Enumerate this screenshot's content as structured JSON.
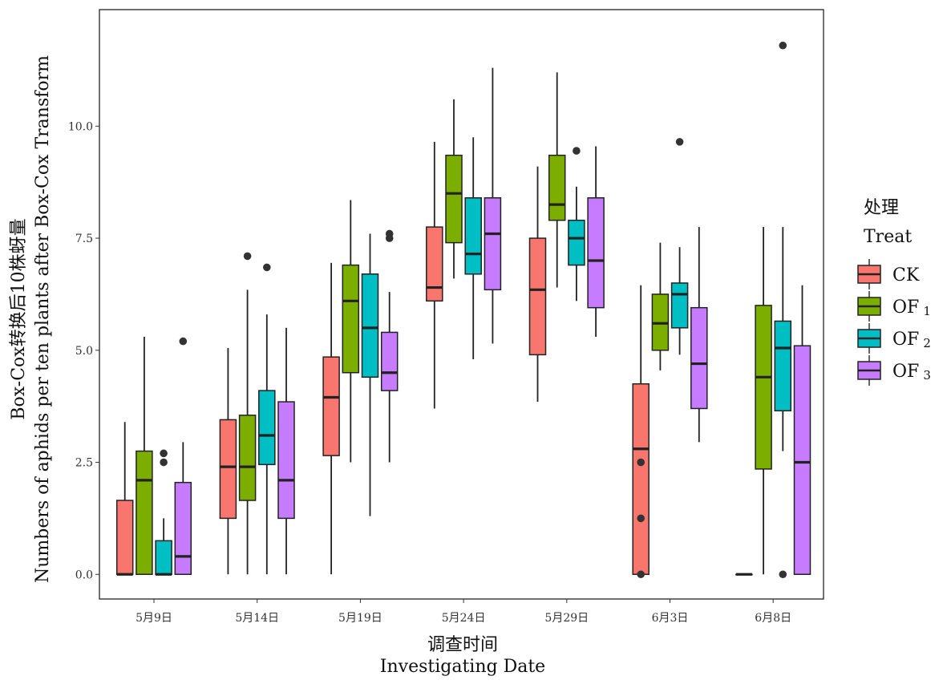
{
  "chart_data": {
    "type": "box",
    "xlabel_cn": "调查时间",
    "xlabel_en": "Investigating Date",
    "ylabel_cn": "Box-Cox转换后10株蚜量",
    "ylabel_en": "Numbers of aphids per ten plants after Box-Cox Transform",
    "yticks": [
      "0.0",
      "2.5",
      "5.0",
      "7.5",
      "10.0"
    ],
    "ylim": [
      -0.55,
      12.6
    ],
    "categories": [
      "5月9日",
      "5月14日",
      "5月19日",
      "5月24日",
      "5月29日",
      "6月3日",
      "6月8日"
    ],
    "legend": {
      "title_cn": "处理",
      "title_en": "Treat",
      "position": "right",
      "entries": [
        {
          "name": "CK",
          "sub": "",
          "color": "#F8766D"
        },
        {
          "name": "OF",
          "sub": "1",
          "color": "#7CAE00"
        },
        {
          "name": "OF",
          "sub": "2",
          "color": "#00BFC4"
        },
        {
          "name": "OF",
          "sub": "3",
          "color": "#C77CFF"
        }
      ]
    },
    "series": [
      {
        "name": "CK",
        "boxes": [
          {
            "min": 0.0,
            "q1": 0.0,
            "median": 0.0,
            "q3": 1.65,
            "max": 3.4,
            "outliers": []
          },
          {
            "min": 0.0,
            "q1": 1.25,
            "median": 2.4,
            "q3": 3.45,
            "max": 5.05,
            "outliers": []
          },
          {
            "min": 0.0,
            "q1": 2.65,
            "median": 3.95,
            "q3": 4.85,
            "max": 6.95,
            "outliers": []
          },
          {
            "min": 3.7,
            "q1": 6.1,
            "median": 6.4,
            "q3": 7.75,
            "max": 9.65,
            "outliers": []
          },
          {
            "min": 3.85,
            "q1": 4.9,
            "median": 6.35,
            "q3": 7.5,
            "max": 9.1,
            "outliers": []
          },
          {
            "min": 0.0,
            "q1": 0.0,
            "median": 2.8,
            "q3": 4.25,
            "max": 6.45,
            "outliers": [
              2.5,
              1.25,
              0.0
            ]
          },
          {
            "min": 0.0,
            "q1": 0.0,
            "median": 0.0,
            "q3": 0.0,
            "max": 0.0,
            "outliers": []
          }
        ]
      },
      {
        "name": "OF1",
        "boxes": [
          {
            "min": 0.0,
            "q1": 0.0,
            "median": 2.1,
            "q3": 2.75,
            "max": 5.3,
            "outliers": []
          },
          {
            "min": 0.0,
            "q1": 1.65,
            "median": 2.4,
            "q3": 3.55,
            "max": 6.35,
            "outliers": [
              7.1
            ]
          },
          {
            "min": 2.5,
            "q1": 4.5,
            "median": 6.1,
            "q3": 6.9,
            "max": 8.35,
            "outliers": []
          },
          {
            "min": 6.6,
            "q1": 7.4,
            "median": 8.5,
            "q3": 9.35,
            "max": 10.6,
            "outliers": []
          },
          {
            "min": 6.4,
            "q1": 7.9,
            "median": 8.25,
            "q3": 9.35,
            "max": 11.2,
            "outliers": []
          },
          {
            "min": 4.55,
            "q1": 5.0,
            "median": 5.6,
            "q3": 6.25,
            "max": 7.4,
            "outliers": []
          },
          {
            "min": 0.0,
            "q1": 2.35,
            "median": 4.4,
            "q3": 6.0,
            "max": 7.75,
            "outliers": []
          }
        ]
      },
      {
        "name": "OF2",
        "boxes": [
          {
            "min": 0.0,
            "q1": 0.0,
            "median": 0.0,
            "q3": 0.75,
            "max": 1.25,
            "outliers": [
              2.7,
              2.5
            ]
          },
          {
            "min": 0.0,
            "q1": 2.45,
            "median": 3.1,
            "q3": 4.1,
            "max": 5.8,
            "outliers": [
              6.85
            ]
          },
          {
            "min": 1.3,
            "q1": 4.4,
            "median": 5.5,
            "q3": 6.7,
            "max": 7.6,
            "outliers": []
          },
          {
            "min": 4.8,
            "q1": 6.7,
            "median": 7.15,
            "q3": 8.4,
            "max": 9.75,
            "outliers": []
          },
          {
            "min": 6.1,
            "q1": 6.9,
            "median": 7.5,
            "q3": 7.9,
            "max": 8.65,
            "outliers": [
              9.45
            ]
          },
          {
            "min": 4.9,
            "q1": 5.5,
            "median": 6.25,
            "q3": 6.5,
            "max": 7.3,
            "outliers": [
              9.65
            ]
          },
          {
            "min": 2.75,
            "q1": 3.65,
            "median": 5.05,
            "q3": 5.65,
            "max": 7.75,
            "outliers": [
              0.0,
              11.8
            ]
          }
        ]
      },
      {
        "name": "OF3",
        "boxes": [
          {
            "min": 0.0,
            "q1": 0.0,
            "median": 0.4,
            "q3": 2.05,
            "max": 2.95,
            "outliers": [
              5.2
            ]
          },
          {
            "min": 0.0,
            "q1": 1.25,
            "median": 2.1,
            "q3": 3.85,
            "max": 5.5,
            "outliers": []
          },
          {
            "min": 2.5,
            "q1": 4.1,
            "median": 4.5,
            "q3": 5.4,
            "max": 6.3,
            "outliers": [
              7.5,
              7.6
            ]
          },
          {
            "min": 5.15,
            "q1": 6.35,
            "median": 7.6,
            "q3": 8.4,
            "max": 11.3,
            "outliers": []
          },
          {
            "min": 5.3,
            "q1": 5.95,
            "median": 7.0,
            "q3": 8.4,
            "max": 9.55,
            "outliers": []
          },
          {
            "min": 2.95,
            "q1": 3.7,
            "median": 4.7,
            "q3": 5.95,
            "max": 7.75,
            "outliers": []
          },
          {
            "min": 0.0,
            "q1": 0.0,
            "median": 2.5,
            "q3": 5.1,
            "max": 6.45,
            "outliers": []
          }
        ]
      }
    ]
  }
}
